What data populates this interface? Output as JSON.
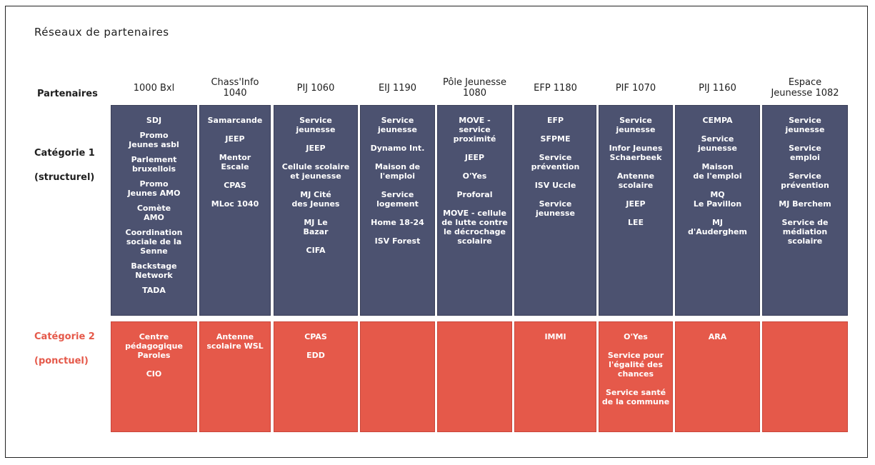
{
  "title": "Réseaux de partenaires",
  "row_labels": {
    "partners": "Partenaires",
    "cat1": "Catégorie 1\n(structurel)",
    "cat2": "Catégorie 2\n(ponctuel)"
  },
  "colors": {
    "cat1": "#4c5270",
    "cat2": "#e5594a",
    "cat2_label": "#e5594a"
  },
  "columns": [
    {
      "name": "1000 Bxl",
      "cat1": [
        "SDJ",
        "Promo\nJeunes asbl",
        "Parlement\nbruxellois",
        "Promo\nJeunes AMO",
        "Comète\nAMO",
        "Coordination\nsociale de la Senne",
        "Backstage Network",
        "TADA"
      ],
      "cat2": [
        "Centre\npédagogique\nParoles",
        "CIO"
      ]
    },
    {
      "name": "Chass'Info\n1040",
      "cat1": [
        "Samarcande",
        "JEEP",
        "Mentor\nEscale",
        "CPAS",
        "MLoc 1040"
      ],
      "cat2": [
        "Antenne\nscolaire WSL"
      ]
    },
    {
      "name": "PIJ 1060",
      "cat1": [
        "Service\njeunesse",
        "JEEP",
        "Cellule scolaire\net jeunesse",
        "MJ Cité\ndes Jeunes",
        "MJ Le\nBazar",
        "CIFA"
      ],
      "cat2": [
        "CPAS",
        "EDD"
      ]
    },
    {
      "name": "EIJ 1190",
      "cat1": [
        "Service\njeunesse",
        "Dynamo Int.",
        "Maison de\nl'emploi",
        "Service\nlogement",
        "Home 18-24",
        "ISV Forest"
      ],
      "cat2": []
    },
    {
      "name": "Pôle Jeunesse\n1080",
      "cat1": [
        "MOVE -\nservice\nproximité",
        "JEEP",
        "O'Yes",
        "Proforal",
        "MOVE - cellule\nde lutte contre\nle décrochage\nscolaire"
      ],
      "cat2": []
    },
    {
      "name": "EFP 1180",
      "cat1": [
        "EFP",
        "SFPME",
        "Service\nprévention",
        "ISV Uccle",
        "Service\njeunesse"
      ],
      "cat2": [
        "IMMI"
      ]
    },
    {
      "name": "PIF 1070",
      "cat1": [
        "Service\njeunesse",
        "Infor Jeunes\nSchaerbeek",
        "Antenne\nscolaire",
        "JEEP",
        "LEE"
      ],
      "cat2": [
        "O'Yes",
        "Service pour\nl'égalité des\nchances",
        "Service santé\nde la commune"
      ]
    },
    {
      "name": "PIJ 1160",
      "cat1": [
        "CEMPA",
        "Service\njeunesse",
        "Maison\nde l'emploi",
        "MQ\nLe Pavillon",
        "MJ\nd'Auderghem"
      ],
      "cat2": [
        "ARA"
      ]
    },
    {
      "name": "Espace\nJeunesse 1082",
      "cat1": [
        "Service\njeunesse",
        "Service\nemploi",
        "Service\nprévention",
        "MJ Berchem",
        "Service de\nmédiation\nscolaire"
      ],
      "cat2": []
    }
  ]
}
